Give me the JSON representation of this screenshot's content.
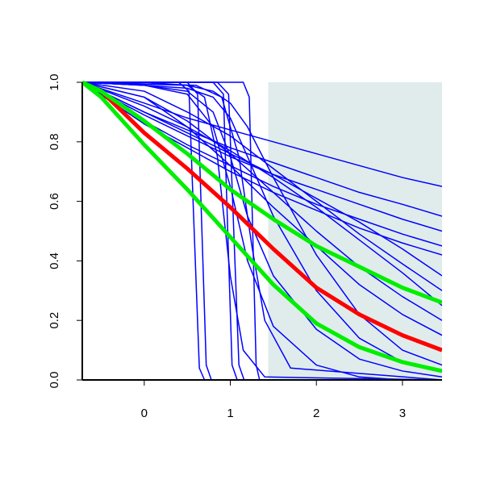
{
  "chart_data": {
    "type": "line",
    "xlim": [
      -0.72,
      3.46
    ],
    "ylim": [
      0,
      1
    ],
    "xticks": [
      0,
      1,
      2,
      3
    ],
    "yticks": [
      {
        "value": 0,
        "label": "0.0"
      },
      0.2,
      0.4,
      0.6,
      0.8,
      {
        "value": 1,
        "label": "1.0"
      }
    ],
    "shaded_region": {
      "x": [
        1.44,
        3.46
      ],
      "color": "#e0ecec"
    },
    "series": [
      {
        "color": "#0000ff",
        "x": [
          -0.72,
          0,
          0.5,
          1,
          1.5,
          2,
          2.5,
          3,
          3.46
        ],
        "values": [
          1,
          0.93,
          0.88,
          0.84,
          0.8,
          0.76,
          0.72,
          0.68,
          0.65
        ]
      },
      {
        "color": "#0000ff",
        "x": [
          -0.72,
          0,
          0.5,
          1,
          1.5,
          2,
          2.5,
          3,
          3.46
        ],
        "values": [
          1,
          0.9,
          0.84,
          0.78,
          0.73,
          0.68,
          0.63,
          0.59,
          0.55
        ]
      },
      {
        "color": "#0000ff",
        "x": [
          -0.72,
          0,
          0.5,
          1,
          1.5,
          2,
          2.5,
          3,
          3.46
        ],
        "values": [
          1,
          0.89,
          0.82,
          0.75,
          0.69,
          0.64,
          0.59,
          0.54,
          0.5
        ]
      },
      {
        "color": "#0000ff",
        "x": [
          -0.72,
          0,
          0.5,
          1,
          1.5,
          2,
          2.5,
          3,
          3.46
        ],
        "values": [
          1,
          0.87,
          0.79,
          0.72,
          0.65,
          0.59,
          0.54,
          0.49,
          0.45
        ]
      },
      {
        "color": "#0000ff",
        "x": [
          -0.72,
          0,
          0.5,
          1,
          1.5,
          2,
          2.5,
          3,
          3.46
        ],
        "values": [
          1,
          0.86,
          0.78,
          0.7,
          0.63,
          0.57,
          0.51,
          0.46,
          0.42
        ]
      },
      {
        "color": "#0000ff",
        "x": [
          -0.72,
          0,
          0.5,
          1,
          1.5,
          2,
          2.5,
          3,
          3.46
        ],
        "values": [
          1,
          0.97,
          0.9,
          0.82,
          0.71,
          0.6,
          0.49,
          0.39,
          0.3
        ]
      },
      {
        "color": "#0000ff",
        "x": [
          -0.72,
          0,
          0.5,
          1,
          1.5,
          2,
          2.5,
          3,
          3.46
        ],
        "values": [
          1,
          0.95,
          0.87,
          0.76,
          0.63,
          0.5,
          0.38,
          0.28,
          0.2
        ]
      },
      {
        "color": "#0000ff",
        "x": [
          -0.72,
          0,
          0.5,
          1,
          1.5,
          2,
          2.5,
          3,
          3.46
        ],
        "values": [
          1,
          0.95,
          0.85,
          0.72,
          0.58,
          0.45,
          0.32,
          0.22,
          0.15
        ]
      },
      {
        "color": "#0000ff",
        "x": [
          -0.72,
          0,
          0.5,
          1,
          1.5,
          2,
          2.5,
          3,
          3.46
        ],
        "values": [
          1,
          0.9,
          0.83,
          0.76,
          0.69,
          0.61,
          0.53,
          0.44,
          0.35
        ]
      },
      {
        "color": "#0000ff",
        "x": [
          -0.72,
          0,
          0.5,
          1,
          1.5,
          2,
          2.5,
          3,
          3.46
        ],
        "values": [
          1,
          0.92,
          0.85,
          0.77,
          0.68,
          0.58,
          0.47,
          0.36,
          0.25
        ]
      },
      {
        "color": "#0000ff",
        "x": [
          -0.72,
          0,
          0.5,
          0.8,
          1,
          1.2,
          1.5,
          2,
          2.5,
          3,
          3.46
        ],
        "values": [
          1,
          0.99,
          0.97,
          0.9,
          0.75,
          0.55,
          0.35,
          0.17,
          0.07,
          0.03,
          0.01
        ]
      },
      {
        "color": "#0000ff",
        "x": [
          -0.72,
          0,
          0.5,
          0.8,
          1,
          1.2,
          1.5,
          2,
          2.5,
          3,
          3.46
        ],
        "values": [
          1,
          0.99,
          0.98,
          0.95,
          0.88,
          0.75,
          0.55,
          0.3,
          0.14,
          0.06,
          0.03
        ]
      },
      {
        "color": "#0000ff",
        "x": [
          -0.72,
          0,
          0.5,
          0.8,
          1,
          1.2,
          1.5,
          2,
          2.5,
          3,
          3.46
        ],
        "values": [
          1,
          0.99,
          0.96,
          0.85,
          0.65,
          0.4,
          0.18,
          0.05,
          0.01,
          0,
          0
        ]
      },
      {
        "color": "#0000ff",
        "x": [
          -0.72,
          0,
          0.5,
          0.8,
          1,
          1.2,
          1.5,
          2,
          2.5,
          3,
          3.46
        ],
        "values": [
          1,
          1,
          0.99,
          0.97,
          0.93,
          0.85,
          0.68,
          0.42,
          0.22,
          0.1,
          0.05
        ]
      },
      {
        "color": "#0000ff",
        "x": [
          -0.72,
          0.4,
          0.52,
          0.58,
          0.64,
          0.7,
          3.46
        ],
        "values": [
          1,
          1,
          0.97,
          0.5,
          0.04,
          0,
          0
        ]
      },
      {
        "color": "#0000ff",
        "x": [
          -0.72,
          0.5,
          0.62,
          0.67,
          0.72,
          0.78,
          3.46
        ],
        "values": [
          1,
          1,
          0.96,
          0.5,
          0.05,
          0,
          0
        ]
      },
      {
        "color": "#0000ff",
        "x": [
          -0.72,
          0.8,
          0.92,
          0.97,
          1.02,
          1.08,
          3.46
        ],
        "values": [
          1,
          1,
          0.96,
          0.5,
          0.05,
          0,
          0
        ]
      },
      {
        "color": "#0000ff",
        "x": [
          -0.72,
          0.85,
          0.98,
          1.04,
          1.1,
          1.16,
          3.46
        ],
        "values": [
          1,
          1,
          0.96,
          0.5,
          0.05,
          0,
          0
        ]
      },
      {
        "color": "#0000ff",
        "x": [
          -0.72,
          1.15,
          1.22,
          1.26,
          1.3,
          1.34,
          3.46
        ],
        "values": [
          1,
          1,
          0.95,
          0.5,
          0.05,
          0,
          0
        ]
      },
      {
        "color": "#0000ff",
        "x": [
          -0.72,
          0.5,
          0.7,
          0.85,
          1,
          1.15,
          1.4,
          3.46
        ],
        "values": [
          1,
          0.99,
          0.95,
          0.75,
          0.35,
          0.1,
          0.01,
          0
        ]
      },
      {
        "color": "#0000ff",
        "x": [
          -0.72,
          0.6,
          0.9,
          1.1,
          1.25,
          1.4,
          1.7,
          3.46
        ],
        "values": [
          1,
          0.99,
          0.95,
          0.75,
          0.45,
          0.2,
          0.04,
          0
        ]
      },
      {
        "color": "#ff0000",
        "linewidth": 5,
        "x": [
          -0.72,
          -0.5,
          0,
          0.5,
          1,
          1.5,
          2,
          2.5,
          3,
          3.46
        ],
        "values": [
          1,
          0.97,
          0.83,
          0.71,
          0.58,
          0.44,
          0.31,
          0.22,
          0.15,
          0.1
        ]
      },
      {
        "color": "#00ee00",
        "linewidth": 5,
        "x": [
          -0.72,
          -0.5,
          0,
          0.5,
          1,
          1.5,
          2,
          2.5,
          3,
          3.46
        ],
        "values": [
          1,
          0.97,
          0.87,
          0.76,
          0.64,
          0.54,
          0.45,
          0.38,
          0.31,
          0.26
        ]
      },
      {
        "color": "#00ee00",
        "linewidth": 5,
        "x": [
          -0.72,
          -0.5,
          0,
          0.5,
          1,
          1.5,
          2,
          2.5,
          3,
          3.46
        ],
        "values": [
          1,
          0.95,
          0.79,
          0.64,
          0.48,
          0.32,
          0.19,
          0.11,
          0.06,
          0.03
        ]
      }
    ]
  }
}
